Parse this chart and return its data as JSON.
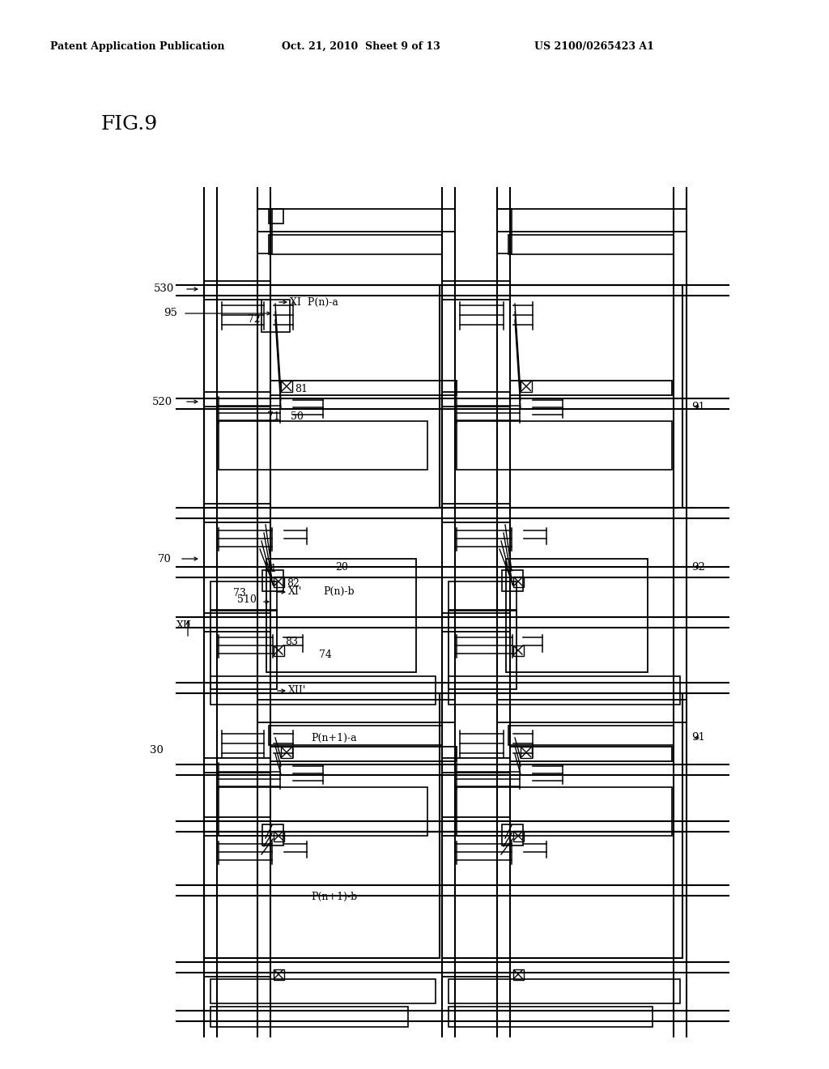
{
  "header_left": "Patent Application Publication",
  "header_center": "Oct. 21, 2010  Sheet 9 of 13",
  "header_right": "US 2100/0265423 A1",
  "fig_label": "FIG.9",
  "bg": "#ffffff"
}
